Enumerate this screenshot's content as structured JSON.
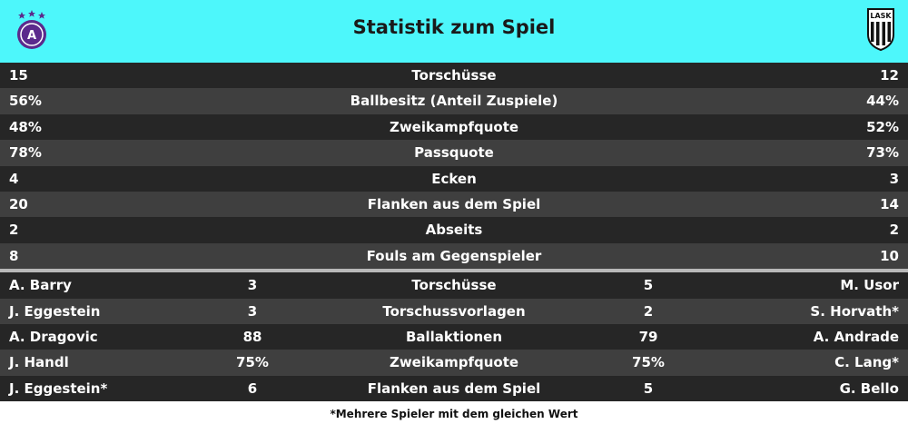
{
  "header": {
    "title": "Statistik zum Spiel",
    "accent_color": "#4df7fb",
    "left_logo": "austria-wien-crest",
    "right_logo": "lask-crest",
    "right_logo_text": "LASK"
  },
  "team_stats": [
    {
      "left": "15",
      "label": "Torschüsse",
      "right": "12"
    },
    {
      "left": "56%",
      "label": "Ballbesitz (Anteil Zuspiele)",
      "right": "44%"
    },
    {
      "left": "48%",
      "label": "Zweikampfquote",
      "right": "52%"
    },
    {
      "left": "78%",
      "label": "Passquote",
      "right": "73%"
    },
    {
      "left": "4",
      "label": "Ecken",
      "right": "3"
    },
    {
      "left": "20",
      "label": "Flanken aus dem Spiel",
      "right": "14"
    },
    {
      "left": "2",
      "label": "Abseits",
      "right": "2"
    },
    {
      "left": "8",
      "label": "Fouls am Gegenspieler",
      "right": "10"
    }
  ],
  "player_stats": [
    {
      "left_name": "A. Barry",
      "left_value": "3",
      "label": "Torschüsse",
      "right_value": "5",
      "right_name": "M. Usor"
    },
    {
      "left_name": "J. Eggestein",
      "left_value": "3",
      "label": "Torschussvorlagen",
      "right_value": "2",
      "right_name": "S. Horvath*"
    },
    {
      "left_name": "A. Dragovic",
      "left_value": "88",
      "label": "Ballaktionen",
      "right_value": "79",
      "right_name": "A. Andrade"
    },
    {
      "left_name": "J. Handl",
      "left_value": "75%",
      "label": "Zweikampfquote",
      "right_value": "75%",
      "right_name": "C. Lang*"
    },
    {
      "left_name": "J. Eggestein*",
      "left_value": "6",
      "label": "Flanken aus dem Spiel",
      "right_value": "5",
      "right_name": "G. Bello"
    }
  ],
  "footnote": "*Mehrere Spieler mit dem gleichen Wert"
}
